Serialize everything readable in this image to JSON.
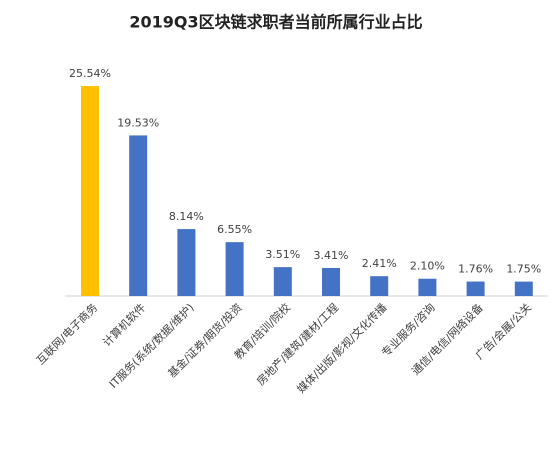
{
  "chart_data": {
    "type": "bar",
    "title": "2019Q3区块链求职者当前所属行业占比",
    "categories": [
      "互联网/电子商务",
      "计算机软件",
      "IT服务(系统/数据/维护)",
      "基金/证券/期货/投资",
      "教育/培训/院校",
      "房地产/建筑/建材/工程",
      "媒体/出版/影视/文化传播",
      "专业服务/咨询",
      "通信/电信/网络设备",
      "广告/会展/公关"
    ],
    "values": [
      25.54,
      19.53,
      8.14,
      6.55,
      3.51,
      3.41,
      2.41,
      2.1,
      1.76,
      1.75
    ],
    "value_labels": [
      "25.54%",
      "19.53%",
      "8.14%",
      "6.55%",
      "3.51%",
      "3.41%",
      "2.41%",
      "2.10%",
      "1.76%",
      "1.75%"
    ],
    "colors": [
      "#ffc000",
      "#4472c4",
      "#4472c4",
      "#4472c4",
      "#4472c4",
      "#4472c4",
      "#4472c4",
      "#4472c4",
      "#4472c4",
      "#4472c4"
    ]
  }
}
